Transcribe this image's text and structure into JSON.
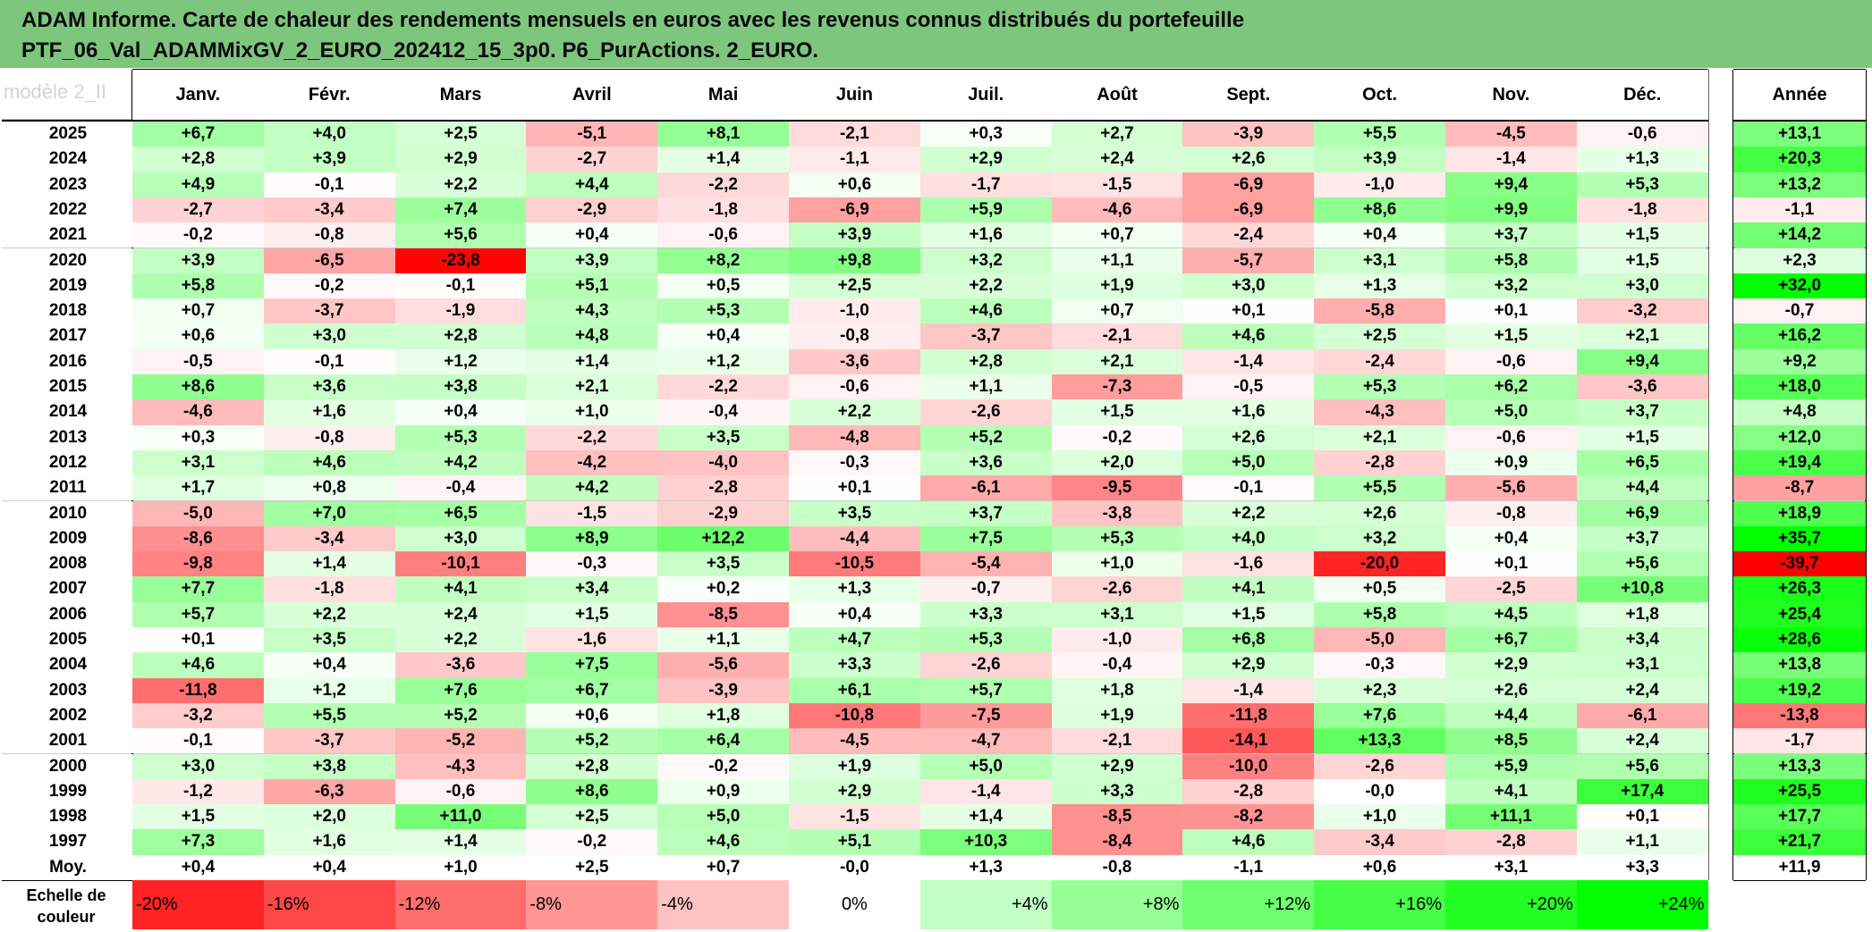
{
  "title_lines": [
    "ADAM Informe. Carte de chaleur des rendements mensuels en euros avec les revenus connus distribués du portefeuille",
    "PTF_06_Val_ADAMMixGV_2_EURO_202412_15_3p0. P6_PurActions. 2_EURO."
  ],
  "faint_label": "modèle 2_II",
  "chart_data": {
    "type": "heatmap",
    "columns": [
      "Janv.",
      "Févr.",
      "Mars",
      "Avril",
      "Mai",
      "Juin",
      "Juil.",
      "Août",
      "Sept.",
      "Oct.",
      "Nov.",
      "Déc."
    ],
    "annual_header": "Année",
    "rows": [
      {
        "year": "2025",
        "m": [
          "+6,7",
          "+4,0",
          "+2,5",
          "-5,1",
          "+8,1",
          "-2,1",
          "+0,3",
          "+2,7",
          "-3,9",
          "+5,5",
          "-4,5",
          "-0,6"
        ],
        "y": "+13,1"
      },
      {
        "year": "2024",
        "m": [
          "+2,8",
          "+3,9",
          "+2,9",
          "-2,7",
          "+1,4",
          "-1,1",
          "+2,9",
          "+2,4",
          "+2,6",
          "+3,9",
          "-1,4",
          "+1,3"
        ],
        "y": "+20,3"
      },
      {
        "year": "2023",
        "m": [
          "+4,9",
          "-0,1",
          "+2,2",
          "+4,4",
          "-2,2",
          "+0,6",
          "-1,7",
          "-1,5",
          "-6,9",
          "-1,0",
          "+9,4",
          "+5,3"
        ],
        "y": "+13,2"
      },
      {
        "year": "2022",
        "m": [
          "-2,7",
          "-3,4",
          "+7,4",
          "-2,9",
          "-1,8",
          "-6,9",
          "+5,9",
          "-4,6",
          "-6,9",
          "+8,6",
          "+9,9",
          "-1,8"
        ],
        "y": "-1,1"
      },
      {
        "year": "2021",
        "m": [
          "-0,2",
          "-0,8",
          "+5,6",
          "+0,4",
          "-0,6",
          "+3,9",
          "+1,6",
          "+0,7",
          "-2,4",
          "+0,4",
          "+3,7",
          "+1,5"
        ],
        "y": "+14,2"
      },
      {
        "year": "2020",
        "m": [
          "+3,9",
          "-6,5",
          "-23,8",
          "+3,9",
          "+8,2",
          "+9,8",
          "+3,2",
          "+1,1",
          "-5,7",
          "+3,1",
          "+5,8",
          "+1,5"
        ],
        "y": "+2,3"
      },
      {
        "year": "2019",
        "m": [
          "+5,8",
          "-0,2",
          "-0,1",
          "+5,1",
          "+0,5",
          "+2,5",
          "+2,2",
          "+1,9",
          "+3,0",
          "+1,3",
          "+3,2",
          "+3,0"
        ],
        "y": "+32,0"
      },
      {
        "year": "2018",
        "m": [
          "+0,7",
          "-3,7",
          "-1,9",
          "+4,3",
          "+5,3",
          "-1,0",
          "+4,6",
          "+0,7",
          "+0,1",
          "-5,8",
          "+0,1",
          "-3,2"
        ],
        "y": "-0,7"
      },
      {
        "year": "2017",
        "m": [
          "+0,6",
          "+3,0",
          "+2,8",
          "+4,8",
          "+0,4",
          "-0,8",
          "-3,7",
          "-2,1",
          "+4,6",
          "+2,5",
          "+1,5",
          "+2,1"
        ],
        "y": "+16,2"
      },
      {
        "year": "2016",
        "m": [
          "-0,5",
          "-0,1",
          "+1,2",
          "+1,4",
          "+1,2",
          "-3,6",
          "+2,8",
          "+2,1",
          "-1,4",
          "-2,4",
          "-0,6",
          "+9,4"
        ],
        "y": "+9,2"
      },
      {
        "year": "2015",
        "m": [
          "+8,6",
          "+3,6",
          "+3,8",
          "+2,1",
          "-2,2",
          "-0,6",
          "+1,1",
          "-7,3",
          "-0,5",
          "+5,3",
          "+6,2",
          "-3,6"
        ],
        "y": "+18,0"
      },
      {
        "year": "2014",
        "m": [
          "-4,6",
          "+1,6",
          "+0,4",
          "+1,0",
          "-0,4",
          "+2,2",
          "-2,6",
          "+1,5",
          "+1,6",
          "-4,3",
          "+5,0",
          "+3,7"
        ],
        "y": "+4,8"
      },
      {
        "year": "2013",
        "m": [
          "+0,3",
          "-0,8",
          "+5,3",
          "-2,2",
          "+3,5",
          "-4,8",
          "+5,2",
          "-0,2",
          "+2,6",
          "+2,1",
          "-0,6",
          "+1,5"
        ],
        "y": "+12,0"
      },
      {
        "year": "2012",
        "m": [
          "+3,1",
          "+4,6",
          "+4,2",
          "-4,2",
          "-4,0",
          "-0,3",
          "+3,6",
          "+2,0",
          "+5,0",
          "-2,8",
          "+0,9",
          "+6,5"
        ],
        "y": "+19,4"
      },
      {
        "year": "2011",
        "m": [
          "+1,7",
          "+0,8",
          "-0,4",
          "+4,2",
          "-2,8",
          "+0,1",
          "-6,1",
          "-9,5",
          "-0,1",
          "+5,5",
          "-5,6",
          "+4,4"
        ],
        "y": "-8,7"
      },
      {
        "year": "2010",
        "m": [
          "-5,0",
          "+7,0",
          "+6,5",
          "-1,5",
          "-2,9",
          "+3,5",
          "+3,7",
          "-3,8",
          "+2,2",
          "+2,6",
          "-0,8",
          "+6,9"
        ],
        "y": "+18,9"
      },
      {
        "year": "2009",
        "m": [
          "-8,6",
          "-3,4",
          "+3,0",
          "+8,9",
          "+12,2",
          "-4,4",
          "+7,5",
          "+5,3",
          "+4,0",
          "+3,2",
          "+0,4",
          "+3,7"
        ],
        "y": "+35,7"
      },
      {
        "year": "2008",
        "m": [
          "-9,8",
          "+1,4",
          "-10,1",
          "-0,3",
          "+3,5",
          "-10,5",
          "-5,4",
          "+1,0",
          "-1,6",
          "-20,0",
          "+0,1",
          "+5,6"
        ],
        "y": "-39,7"
      },
      {
        "year": "2007",
        "m": [
          "+7,7",
          "-1,8",
          "+4,1",
          "+3,4",
          "+0,2",
          "+1,3",
          "-0,7",
          "-2,6",
          "+4,1",
          "+0,5",
          "-2,5",
          "+10,8"
        ],
        "y": "+26,3"
      },
      {
        "year": "2006",
        "m": [
          "+5,7",
          "+2,2",
          "+2,4",
          "+1,5",
          "-8,5",
          "+0,4",
          "+3,3",
          "+3,1",
          "+1,5",
          "+5,8",
          "+4,5",
          "+1,8"
        ],
        "y": "+25,4"
      },
      {
        "year": "2005",
        "m": [
          "+0,1",
          "+3,5",
          "+2,2",
          "-1,6",
          "+1,1",
          "+4,7",
          "+5,3",
          "-1,0",
          "+6,8",
          "-5,0",
          "+6,7",
          "+3,4"
        ],
        "y": "+28,6"
      },
      {
        "year": "2004",
        "m": [
          "+4,6",
          "+0,4",
          "-3,6",
          "+7,5",
          "-5,6",
          "+3,3",
          "-2,6",
          "-0,4",
          "+2,9",
          "-0,3",
          "+2,9",
          "+3,1"
        ],
        "y": "+13,8"
      },
      {
        "year": "2003",
        "m": [
          "-11,8",
          "+1,2",
          "+7,6",
          "+6,7",
          "-3,9",
          "+6,1",
          "+5,7",
          "+1,8",
          "-1,4",
          "+2,3",
          "+2,6",
          "+2,4"
        ],
        "y": "+19,2"
      },
      {
        "year": "2002",
        "m": [
          "-3,2",
          "+5,5",
          "+5,2",
          "+0,6",
          "+1,8",
          "-10,8",
          "-7,5",
          "+1,9",
          "-11,8",
          "+7,6",
          "+4,4",
          "-6,1"
        ],
        "y": "-13,8"
      },
      {
        "year": "2001",
        "m": [
          "-0,1",
          "-3,7",
          "-5,2",
          "+5,2",
          "+6,4",
          "-4,5",
          "-4,7",
          "-2,1",
          "-14,1",
          "+13,3",
          "+8,5",
          "+2,4"
        ],
        "y": "-1,7"
      },
      {
        "year": "2000",
        "m": [
          "+3,0",
          "+3,8",
          "-4,3",
          "+2,8",
          "-0,2",
          "+1,9",
          "+5,0",
          "+2,9",
          "-10,0",
          "-2,6",
          "+5,9",
          "+5,6"
        ],
        "y": "+13,3"
      },
      {
        "year": "1999",
        "m": [
          "-1,2",
          "-6,3",
          "-0,6",
          "+8,6",
          "+0,9",
          "+2,9",
          "-1,4",
          "+3,3",
          "-2,8",
          "-0,0",
          "+4,1",
          "+17,4"
        ],
        "y": "+25,5"
      },
      {
        "year": "1998",
        "m": [
          "+1,5",
          "+2,0",
          "+11,0",
          "+2,5",
          "+5,0",
          "-1,5",
          "+1,4",
          "-8,5",
          "-8,2",
          "+1,0",
          "+11,1",
          "+0,1"
        ],
        "y": "+17,7"
      },
      {
        "year": "1997",
        "m": [
          "+7,3",
          "+1,6",
          "+1,4",
          "-0,2",
          "+4,6",
          "+5,1",
          "+10,3",
          "-8,4",
          "+4,6",
          "-3,4",
          "-2,8",
          "+1,1"
        ],
        "y": "+21,7"
      }
    ],
    "average": {
      "label": "Moy.",
      "m": [
        "+0,4",
        "+0,4",
        "+1,0",
        "+2,5",
        "+0,7",
        "-0,0",
        "+1,3",
        "-0,8",
        "-1,1",
        "+0,6",
        "+3,1",
        "+3,3"
      ],
      "y": "+11,9"
    },
    "color_scale": {
      "title_lines": [
        "Echelle de",
        "couleur"
      ],
      "steps": [
        {
          "label": "-20%",
          "value": -20
        },
        {
          "label": "-16%",
          "value": -16
        },
        {
          "label": "-12%",
          "value": -12
        },
        {
          "label": "-8%",
          "value": -8
        },
        {
          "label": "-4%",
          "value": -4
        },
        {
          "label": "0%",
          "value": 0
        },
        {
          "label": "+4%",
          "value": 4
        },
        {
          "label": "+8%",
          "value": 8
        },
        {
          "label": "+12%",
          "value": 12
        },
        {
          "label": "+16%",
          "value": 16
        },
        {
          "label": "+20%",
          "value": 20
        },
        {
          "label": "+24%",
          "value": 24
        }
      ]
    },
    "colors": {
      "negative_max": "#ff0000",
      "zero": "#ffffff",
      "positive_max": "#00ff00",
      "title_bg": "#7dc67d"
    }
  }
}
